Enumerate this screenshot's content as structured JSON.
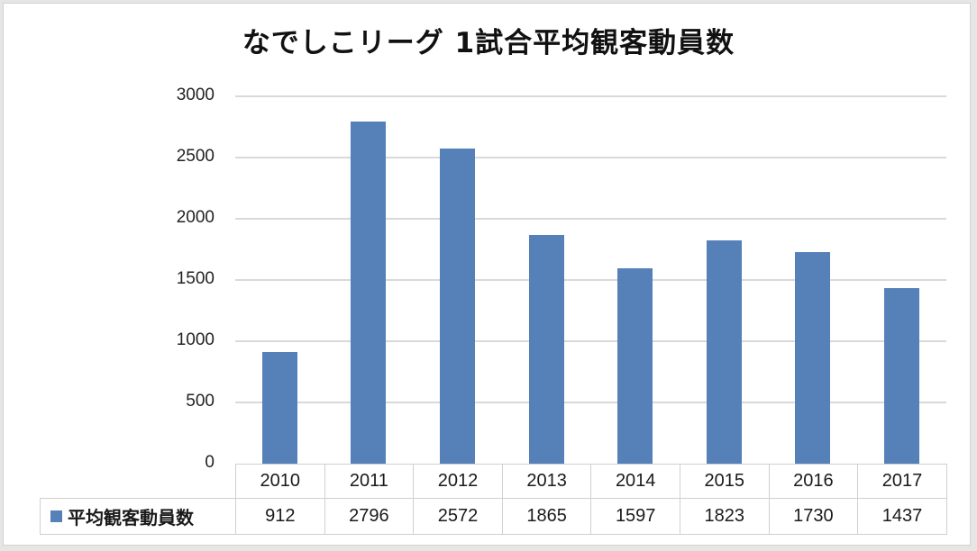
{
  "chart": {
    "title": "なでしこリーグ 1試合平均観客動員数",
    "bar_color": "#5580b8",
    "grid_color": "#d9d9d9",
    "y_ticks": [
      "3000",
      "2500",
      "2000",
      "1500",
      "1000",
      "500",
      "0"
    ],
    "legend_label": "平均観客動員数",
    "table": {
      "years": [
        "2010",
        "2011",
        "2012",
        "2013",
        "2014",
        "2015",
        "2016",
        "2017"
      ],
      "values": [
        "912",
        "2796",
        "2572",
        "1865",
        "1597",
        "1823",
        "1730",
        "1437"
      ]
    }
  },
  "chart_data": {
    "type": "bar",
    "title": "なでしこリーグ 1試合平均観客動員数",
    "categories": [
      "2010",
      "2011",
      "2012",
      "2013",
      "2014",
      "2015",
      "2016",
      "2017"
    ],
    "series": [
      {
        "name": "平均観客動員数",
        "values": [
          912,
          2796,
          2572,
          1865,
          1597,
          1823,
          1730,
          1437
        ]
      }
    ],
    "xlabel": "",
    "ylabel": "",
    "ylim": [
      0,
      3000
    ],
    "y_ticks": [
      0,
      500,
      1000,
      1500,
      2000,
      2500,
      3000
    ],
    "grid": true,
    "legend_position": "data-table-left",
    "data_table": true
  }
}
